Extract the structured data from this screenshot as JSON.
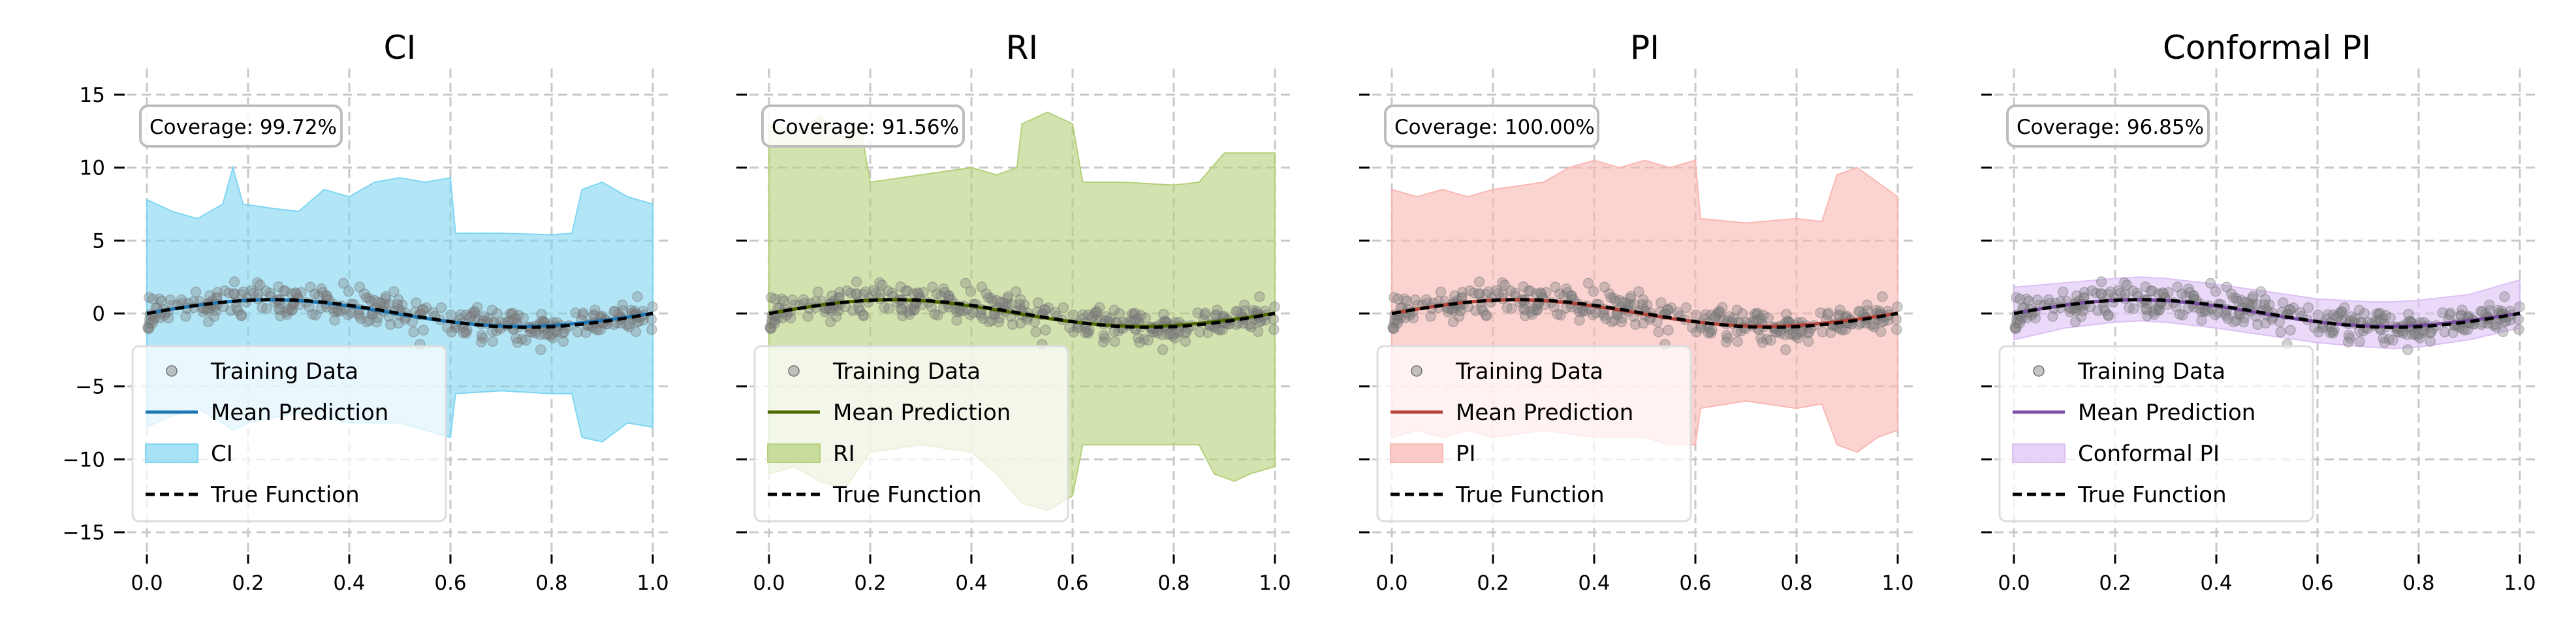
{
  "figure": {
    "background": "#ffffff",
    "grid": true,
    "grid_style": "dashed"
  },
  "chart_data": [
    {
      "type": "scatter+line+area",
      "title": "CI",
      "coverage_label": "Coverage: 99.72%",
      "band_label": "CI",
      "mean_color": "#1f77b4",
      "band_color": "#7fd6f2",
      "xlim": [
        0,
        1
      ],
      "ylim": [
        -15,
        15
      ],
      "xticks": [
        "0.0",
        "0.2",
        "0.4",
        "0.6",
        "0.8",
        "1.0"
      ],
      "yticks": [
        "15",
        "10",
        "5",
        "0",
        "−5",
        "−10",
        "−15"
      ],
      "legend": [
        "Training Data",
        "Mean Prediction",
        "CI",
        "True Function"
      ],
      "band_upper": [
        [
          0,
          7.8
        ],
        [
          0.05,
          7.0
        ],
        [
          0.1,
          6.5
        ],
        [
          0.15,
          7.5
        ],
        [
          0.17,
          10.0
        ],
        [
          0.19,
          7.5
        ],
        [
          0.25,
          7.2
        ],
        [
          0.3,
          7.0
        ],
        [
          0.35,
          8.5
        ],
        [
          0.4,
          8.0
        ],
        [
          0.45,
          9.0
        ],
        [
          0.5,
          9.3
        ],
        [
          0.55,
          9.0
        ],
        [
          0.6,
          9.3
        ],
        [
          0.61,
          5.5
        ],
        [
          0.7,
          5.5
        ],
        [
          0.8,
          5.4
        ],
        [
          0.84,
          5.5
        ],
        [
          0.86,
          8.5
        ],
        [
          0.9,
          9.0
        ],
        [
          0.95,
          8.0
        ],
        [
          1.0,
          7.5
        ]
      ],
      "band_lower": [
        [
          0,
          -7.8
        ],
        [
          0.05,
          -7.0
        ],
        [
          0.1,
          -6.5
        ],
        [
          0.15,
          -7.5
        ],
        [
          0.17,
          -8.0
        ],
        [
          0.2,
          -7.5
        ],
        [
          0.3,
          -6.8
        ],
        [
          0.4,
          -7.5
        ],
        [
          0.5,
          -7.5
        ],
        [
          0.55,
          -8.0
        ],
        [
          0.6,
          -8.5
        ],
        [
          0.61,
          -5.5
        ],
        [
          0.7,
          -5.3
        ],
        [
          0.8,
          -5.5
        ],
        [
          0.84,
          -5.5
        ],
        [
          0.86,
          -8.5
        ],
        [
          0.9,
          -8.8
        ],
        [
          0.95,
          -7.5
        ],
        [
          1.0,
          -7.8
        ]
      ]
    },
    {
      "type": "scatter+line+area",
      "title": "RI",
      "coverage_label": "Coverage: 91.56%",
      "band_label": "RI",
      "mean_color": "#4c6a00",
      "band_color": "#b5d07a",
      "xlim": [
        0,
        1
      ],
      "ylim": [
        -15,
        15
      ],
      "xticks": [
        "0.0",
        "0.2",
        "0.4",
        "0.6",
        "0.8",
        "1.0"
      ],
      "yticks": [
        "15",
        "10",
        "5",
        "0",
        "−5",
        "−10",
        "−15"
      ],
      "legend": [
        "Training Data",
        "Mean Prediction",
        "RI",
        "True Function"
      ],
      "band_upper": [
        [
          0,
          13.0
        ],
        [
          0.05,
          12.5
        ],
        [
          0.1,
          13.5
        ],
        [
          0.15,
          12.0
        ],
        [
          0.18,
          13.0
        ],
        [
          0.2,
          9.0
        ],
        [
          0.3,
          9.5
        ],
        [
          0.4,
          10.0
        ],
        [
          0.45,
          9.5
        ],
        [
          0.49,
          10.0
        ],
        [
          0.5,
          13.0
        ],
        [
          0.55,
          13.8
        ],
        [
          0.6,
          13.0
        ],
        [
          0.62,
          9.0
        ],
        [
          0.7,
          9.0
        ],
        [
          0.8,
          8.8
        ],
        [
          0.85,
          9.0
        ],
        [
          0.9,
          11.0
        ],
        [
          0.95,
          11.0
        ],
        [
          1.0,
          11.0
        ]
      ],
      "band_lower": [
        [
          0,
          -11.0
        ],
        [
          0.05,
          -10.5
        ],
        [
          0.1,
          -11.5
        ],
        [
          0.15,
          -12.0
        ],
        [
          0.2,
          -9.5
        ],
        [
          0.3,
          -9.0
        ],
        [
          0.4,
          -9.5
        ],
        [
          0.45,
          -11.0
        ],
        [
          0.5,
          -13.0
        ],
        [
          0.55,
          -13.5
        ],
        [
          0.6,
          -12.5
        ],
        [
          0.62,
          -9.0
        ],
        [
          0.7,
          -9.0
        ],
        [
          0.8,
          -9.0
        ],
        [
          0.85,
          -9.0
        ],
        [
          0.88,
          -11.0
        ],
        [
          0.92,
          -11.5
        ],
        [
          0.95,
          -11.0
        ],
        [
          1.0,
          -10.5
        ]
      ]
    },
    {
      "type": "scatter+line+area",
      "title": "PI",
      "coverage_label": "Coverage: 100.00%",
      "band_label": "PI",
      "mean_color": "#b5443a",
      "band_color": "#f9b7b3",
      "xlim": [
        0,
        1
      ],
      "ylim": [
        -15,
        15
      ],
      "xticks": [
        "0.0",
        "0.2",
        "0.4",
        "0.6",
        "0.8",
        "1.0"
      ],
      "yticks": [
        "15",
        "10",
        "5",
        "0",
        "−5",
        "−10",
        "−15"
      ],
      "legend": [
        "Training Data",
        "Mean Prediction",
        "PI",
        "True Function"
      ],
      "band_upper": [
        [
          0,
          8.5
        ],
        [
          0.05,
          8.0
        ],
        [
          0.1,
          8.5
        ],
        [
          0.15,
          8.0
        ],
        [
          0.2,
          8.5
        ],
        [
          0.3,
          9.0
        ],
        [
          0.35,
          10.0
        ],
        [
          0.4,
          10.5
        ],
        [
          0.45,
          10.0
        ],
        [
          0.5,
          10.5
        ],
        [
          0.55,
          10.0
        ],
        [
          0.6,
          10.5
        ],
        [
          0.61,
          6.5
        ],
        [
          0.7,
          6.2
        ],
        [
          0.8,
          6.5
        ],
        [
          0.85,
          6.3
        ],
        [
          0.88,
          9.5
        ],
        [
          0.92,
          10.0
        ],
        [
          0.96,
          9.0
        ],
        [
          1.0,
          8.0
        ]
      ],
      "band_lower": [
        [
          0,
          -8.5
        ],
        [
          0.05,
          -8.0
        ],
        [
          0.1,
          -8.5
        ],
        [
          0.15,
          -8.0
        ],
        [
          0.2,
          -8.5
        ],
        [
          0.3,
          -8.0
        ],
        [
          0.4,
          -8.5
        ],
        [
          0.5,
          -8.5
        ],
        [
          0.55,
          -9.0
        ],
        [
          0.6,
          -9.0
        ],
        [
          0.61,
          -6.5
        ],
        [
          0.7,
          -6.0
        ],
        [
          0.8,
          -6.5
        ],
        [
          0.85,
          -6.2
        ],
        [
          0.88,
          -9.0
        ],
        [
          0.92,
          -9.5
        ],
        [
          0.96,
          -8.5
        ],
        [
          1.0,
          -8.0
        ]
      ]
    },
    {
      "type": "scatter+line+area",
      "title": "Conformal PI",
      "coverage_label": "Coverage: 96.85%",
      "band_label": "Conformal PI",
      "mean_color": "#7b4fa3",
      "band_color": "#dcc0f5",
      "xlim": [
        0,
        1
      ],
      "ylim": [
        -15,
        15
      ],
      "xticks": [
        "0.0",
        "0.2",
        "0.4",
        "0.6",
        "0.8",
        "1.0"
      ],
      "yticks": [
        "15",
        "10",
        "5",
        "0",
        "−5",
        "−10",
        "−15"
      ],
      "legend": [
        "Training Data",
        "Mean Prediction",
        "Conformal PI",
        "True Function"
      ],
      "band_upper": [
        [
          0,
          1.8
        ],
        [
          0.1,
          2.1
        ],
        [
          0.2,
          2.4
        ],
        [
          0.25,
          2.5
        ],
        [
          0.3,
          2.4
        ],
        [
          0.4,
          2.0
        ],
        [
          0.5,
          1.5
        ],
        [
          0.6,
          1.0
        ],
        [
          0.7,
          0.8
        ],
        [
          0.75,
          0.8
        ],
        [
          0.8,
          0.9
        ],
        [
          0.9,
          1.3
        ],
        [
          1.0,
          2.3
        ]
      ],
      "band_lower": [
        [
          0,
          -1.8
        ],
        [
          0.1,
          -1.0
        ],
        [
          0.2,
          -0.6
        ],
        [
          0.25,
          -0.5
        ],
        [
          0.3,
          -0.6
        ],
        [
          0.4,
          -1.0
        ],
        [
          0.5,
          -1.5
        ],
        [
          0.6,
          -2.0
        ],
        [
          0.7,
          -2.3
        ],
        [
          0.75,
          -2.4
        ],
        [
          0.8,
          -2.3
        ],
        [
          0.9,
          -1.8
        ],
        [
          1.0,
          -1.0
        ]
      ]
    }
  ]
}
